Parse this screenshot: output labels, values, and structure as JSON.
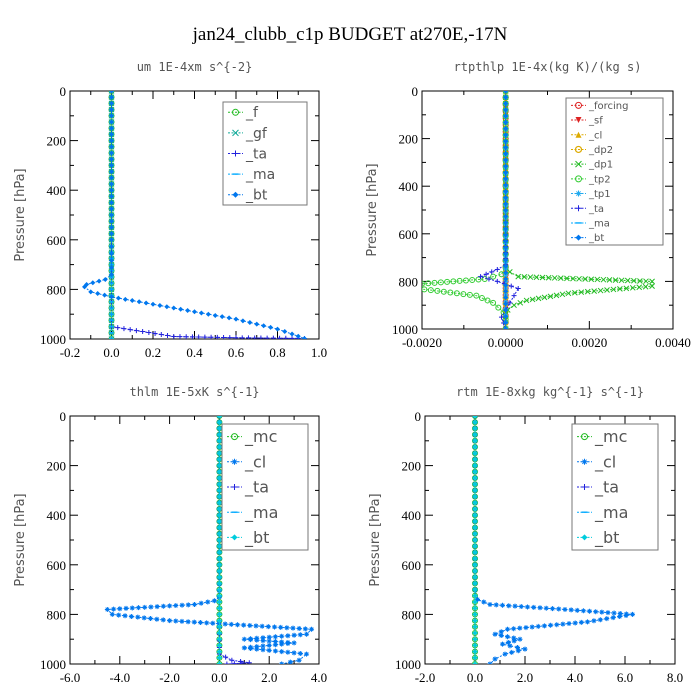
{
  "title": "jan24_clubb_c1p  BUDGET at270E,-17N",
  "colors": {
    "axis": "#000000",
    "legend_border": "#777777"
  },
  "chart_data": [
    {
      "type": "line",
      "panel": "top-left",
      "title": "um   1E-4xm  s^{-2}",
      "ylabel": "Pressure  [hPa]",
      "xlim": [
        -0.2,
        1.0
      ],
      "ylim": [
        1000,
        0
      ],
      "x_ticks": [
        "-0.2",
        "0.0",
        "0.2",
        "0.4",
        "0.6",
        "0.8",
        "1.0"
      ],
      "y_ticks": [
        "0",
        "200",
        "400",
        "600",
        "800",
        "1000"
      ],
      "legend_position": "top-right",
      "series": [
        {
          "name": "_f",
          "color": "#22bb22",
          "marker": "circle",
          "x": [
            0,
            0,
            0,
            0,
            0,
            0,
            0,
            0,
            0,
            0,
            0
          ],
          "y": [
            0,
            100,
            200,
            300,
            400,
            500,
            600,
            700,
            800,
            900,
            1000
          ]
        },
        {
          "name": "_gf",
          "color": "#11aa99",
          "marker": "x",
          "x": [
            0,
            0,
            0,
            0,
            0,
            0,
            0,
            0,
            0,
            0,
            0
          ],
          "y": [
            0,
            100,
            200,
            300,
            400,
            500,
            600,
            700,
            800,
            900,
            1000
          ]
        },
        {
          "name": "_ta",
          "color": "#2222dd",
          "marker": "plus",
          "x": [
            0,
            0,
            0,
            0,
            0.3,
            0.6,
            0.93
          ],
          "y": [
            0,
            400,
            800,
            950,
            990,
            995,
            998
          ]
        },
        {
          "name": "_ma",
          "color": "#00aaff",
          "marker": "dash",
          "x": [
            0,
            0,
            0,
            0,
            0,
            0
          ],
          "y": [
            0,
            200,
            400,
            600,
            800,
            1000
          ]
        },
        {
          "name": "_bt",
          "color": "#0077ee",
          "marker": "diamond",
          "x": [
            0,
            0,
            0,
            0,
            0,
            -0.03,
            -0.12,
            -0.13,
            -0.1,
            0.0,
            0.1,
            0.2,
            0.3,
            0.4,
            0.5,
            0.6,
            0.7,
            0.8,
            0.87,
            0.93
          ],
          "y": [
            0,
            200,
            400,
            600,
            740,
            760,
            780,
            790,
            810,
            830,
            845,
            860,
            875,
            890,
            905,
            920,
            940,
            960,
            980,
            998
          ]
        }
      ]
    },
    {
      "type": "line",
      "panel": "top-right",
      "title": "rtpthlp   1E-4x(kg K)/(kg s)",
      "ylabel": "Pressure  [hPa]",
      "xlim": [
        -0.002,
        0.004
      ],
      "ylim": [
        1000,
        0
      ],
      "x_ticks": [
        "-0.0020",
        "0.0000",
        "0.0020",
        "0.0040"
      ],
      "y_ticks": [
        "0",
        "200",
        "400",
        "600",
        "800",
        "1000"
      ],
      "legend_position": "top-right",
      "series": [
        {
          "name": "_forcing",
          "color": "#dd2222",
          "marker": "circle",
          "x": [
            0,
            0,
            0,
            0,
            0,
            0
          ],
          "y": [
            0,
            200,
            400,
            600,
            800,
            1000
          ]
        },
        {
          "name": "_sf",
          "color": "#dd2222",
          "marker": "triangle-down",
          "x": [
            0,
            0,
            0
          ],
          "y": [
            0,
            500,
            1000
          ]
        },
        {
          "name": "_cl",
          "color": "#ddaa00",
          "marker": "triangle-up",
          "x": [
            0,
            0,
            0
          ],
          "y": [
            0,
            500,
            1000
          ]
        },
        {
          "name": "_dp2",
          "color": "#ddaa00",
          "marker": "circle-open",
          "x": [
            0,
            0,
            0
          ],
          "y": [
            0,
            500,
            1000
          ]
        },
        {
          "name": "_dp1",
          "color": "#22bb22",
          "marker": "x",
          "x": [
            0,
            0,
            0,
            0,
            0.0001,
            0.0003,
            0.0035,
            0.0035,
            0.0015,
            0.0005,
            0.0002,
            5e-05,
            0,
            0,
            0
          ],
          "y": [
            0,
            400,
            700,
            740,
            760,
            780,
            800,
            820,
            850,
            880,
            900,
            920,
            940,
            960,
            1000
          ]
        },
        {
          "name": "_tp2",
          "color": "#33cc33",
          "marker": "circle",
          "x": [
            0,
            0,
            0,
            -0.0001,
            -0.0005,
            -0.002,
            -0.0021,
            -0.0007,
            -0.0003,
            -5e-05,
            0,
            0
          ],
          "y": [
            0,
            400,
            740,
            770,
            790,
            810,
            830,
            860,
            890,
            930,
            960,
            1000
          ]
        },
        {
          "name": "_tp1",
          "color": "#22aaee",
          "marker": "asterisk",
          "x": [
            0,
            0,
            0,
            0
          ],
          "y": [
            0,
            400,
            800,
            1000
          ]
        },
        {
          "name": "_ta",
          "color": "#2222dd",
          "marker": "plus",
          "x": [
            0,
            0,
            0,
            -0.0002,
            -0.0006,
            -0.0002,
            0.0003,
            0.0002,
            0.0001,
            0,
            -0.0001,
            0
          ],
          "y": [
            0,
            500,
            730,
            750,
            780,
            800,
            830,
            860,
            890,
            920,
            950,
            1000
          ]
        },
        {
          "name": "_ma",
          "color": "#00aaff",
          "marker": "dash",
          "x": [
            0,
            0,
            0
          ],
          "y": [
            0,
            500,
            1000
          ]
        },
        {
          "name": "_bt",
          "color": "#0077ee",
          "marker": "diamond",
          "x": [
            0,
            0,
            0
          ],
          "y": [
            0,
            500,
            1000
          ]
        }
      ]
    },
    {
      "type": "line",
      "panel": "bottom-left",
      "title": "thlm   1E-5xK  s^{-1}",
      "ylabel": "Pressure  [hPa]",
      "xlim": [
        -6.0,
        4.0
      ],
      "ylim": [
        1000,
        0
      ],
      "x_ticks": [
        "-6.0",
        "-4.0",
        "-2.0",
        "0.0",
        "2.0",
        "4.0"
      ],
      "y_ticks": [
        "0",
        "200",
        "400",
        "600",
        "800",
        "1000"
      ],
      "legend_position": "top-right",
      "series": [
        {
          "name": "_mc",
          "color": "#22bb22",
          "marker": "circle",
          "x": [
            0,
            0,
            0,
            0,
            0,
            0,
            0,
            0,
            0,
            0,
            0
          ],
          "y": [
            0,
            100,
            200,
            300,
            400,
            500,
            600,
            700,
            800,
            900,
            1000
          ]
        },
        {
          "name": "_cl",
          "color": "#0077ee",
          "marker": "asterisk",
          "x": [
            0,
            0,
            0,
            0,
            -0.2,
            -1.0,
            -4.5,
            -4.3,
            -2.0,
            3.7,
            3.5,
            1.0,
            3.0,
            1.0,
            3.5,
            3.2,
            2.5
          ],
          "y": [
            0,
            400,
            600,
            730,
            745,
            760,
            780,
            800,
            825,
            860,
            880,
            900,
            915,
            935,
            960,
            985,
            1000
          ]
        },
        {
          "name": "_ta",
          "color": "#2222dd",
          "marker": "plus",
          "x": [
            0,
            0,
            0,
            0,
            0.5,
            1.2,
            0.3
          ],
          "y": [
            0,
            400,
            800,
            960,
            985,
            995,
            1000
          ]
        },
        {
          "name": "_ma",
          "color": "#00aaff",
          "marker": "dash",
          "x": [
            0,
            0,
            0
          ],
          "y": [
            0,
            500,
            1000
          ]
        },
        {
          "name": "_bt",
          "color": "#00ccdd",
          "marker": "diamond",
          "x": [
            0,
            0,
            0
          ],
          "y": [
            0,
            500,
            1000
          ]
        }
      ]
    },
    {
      "type": "line",
      "panel": "bottom-right",
      "title": "rtm   1E-8xkg  kg^{-1}  s^{-1}",
      "ylabel": "Pressure  [hPa]",
      "xlim": [
        -2.0,
        8.0
      ],
      "ylim": [
        1000,
        0
      ],
      "x_ticks": [
        "-2.0",
        "0.0",
        "2.0",
        "4.0",
        "6.0",
        "8.0"
      ],
      "y_ticks": [
        "0",
        "200",
        "400",
        "600",
        "800",
        "1000"
      ],
      "legend_position": "top-right",
      "series": [
        {
          "name": "_mc",
          "color": "#22bb22",
          "marker": "circle",
          "x": [
            0,
            0,
            0,
            0,
            0,
            0,
            0,
            0,
            0,
            0,
            0
          ],
          "y": [
            0,
            100,
            200,
            300,
            400,
            500,
            600,
            700,
            800,
            900,
            1000
          ]
        },
        {
          "name": "_cl",
          "color": "#0077ee",
          "marker": "asterisk",
          "x": [
            0,
            0,
            0,
            0.1,
            0.6,
            3.6,
            6.3,
            4.5,
            1.3,
            0.8,
            1.8,
            1.1,
            2.0,
            1.2,
            0.8,
            0.6
          ],
          "y": [
            0,
            400,
            700,
            740,
            760,
            780,
            800,
            830,
            860,
            880,
            900,
            920,
            940,
            960,
            980,
            1000
          ]
        },
        {
          "name": "_ta",
          "color": "#2222dd",
          "marker": "plus",
          "x": [
            0,
            0,
            0
          ],
          "y": [
            0,
            500,
            1000
          ]
        },
        {
          "name": "_ma",
          "color": "#00aaff",
          "marker": "dash",
          "x": [
            0,
            0,
            0
          ],
          "y": [
            0,
            500,
            1000
          ]
        },
        {
          "name": "_bt",
          "color": "#00ccdd",
          "marker": "diamond",
          "x": [
            0,
            0,
            0
          ],
          "y": [
            0,
            500,
            1000
          ]
        }
      ]
    }
  ]
}
